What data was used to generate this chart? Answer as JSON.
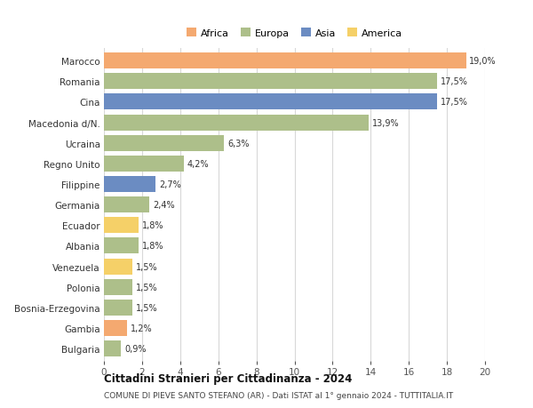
{
  "countries": [
    "Marocco",
    "Romania",
    "Cina",
    "Macedonia d/N.",
    "Ucraina",
    "Regno Unito",
    "Filippine",
    "Germania",
    "Ecuador",
    "Albania",
    "Venezuela",
    "Polonia",
    "Bosnia-Erzegovina",
    "Gambia",
    "Bulgaria"
  ],
  "values": [
    19.0,
    17.5,
    17.5,
    13.9,
    6.3,
    4.2,
    2.7,
    2.4,
    1.8,
    1.8,
    1.5,
    1.5,
    1.5,
    1.2,
    0.9
  ],
  "labels": [
    "19,0%",
    "17,5%",
    "17,5%",
    "13,9%",
    "6,3%",
    "4,2%",
    "2,7%",
    "2,4%",
    "1,8%",
    "1,8%",
    "1,5%",
    "1,5%",
    "1,5%",
    "1,2%",
    "0,9%"
  ],
  "continents": [
    "Africa",
    "Europa",
    "Asia",
    "Europa",
    "Europa",
    "Europa",
    "Asia",
    "Europa",
    "America",
    "Europa",
    "America",
    "Europa",
    "Europa",
    "Africa",
    "Europa"
  ],
  "colors": {
    "Africa": "#F4A970",
    "Europa": "#ADBF8A",
    "Asia": "#6B8CC2",
    "America": "#F5D068"
  },
  "legend_order": [
    "Africa",
    "Europa",
    "Asia",
    "America"
  ],
  "title1": "Cittadini Stranieri per Cittadinanza - 2024",
  "title2": "COMUNE DI PIEVE SANTO STEFANO (AR) - Dati ISTAT al 1° gennaio 2024 - TUTTITALIA.IT",
  "xlim": [
    0,
    20
  ],
  "xticks": [
    0,
    2,
    4,
    6,
    8,
    10,
    12,
    14,
    16,
    18,
    20
  ],
  "background_color": "#ffffff",
  "grid_color": "#d8d8d8"
}
